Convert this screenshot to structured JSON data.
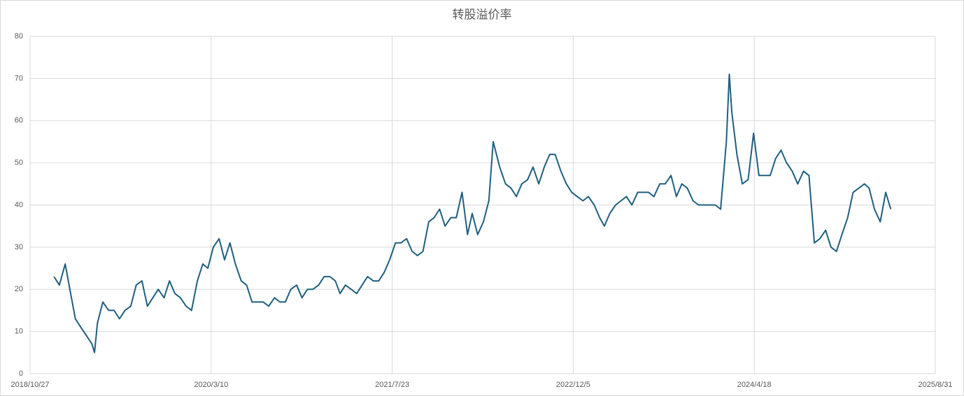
{
  "chart_data": {
    "type": "line",
    "title": "转股溢价率",
    "x": [
      "2019/1/1",
      "2019/1/16",
      "2019/2/1",
      "2019/2/16",
      "2019/3/1",
      "2019/3/16",
      "2019/4/1",
      "2019/4/16",
      "2019/4/23",
      "2019/5/1",
      "2019/5/16",
      "2019/6/1",
      "2019/6/16",
      "2019/7/1",
      "2019/7/16",
      "2019/8/1",
      "2019/8/16",
      "2019/9/1",
      "2019/9/16",
      "2019/10/1",
      "2019/10/16",
      "2019/11/1",
      "2019/11/16",
      "2019/12/1",
      "2019/12/16",
      "2020/1/1",
      "2020/1/16",
      "2020/2/1",
      "2020/2/16",
      "2020/3/1",
      "2020/3/16",
      "2020/4/1",
      "2020/4/16",
      "2020/5/1",
      "2020/5/16",
      "2020/6/1",
      "2020/6/16",
      "2020/7/1",
      "2020/7/16",
      "2020/8/1",
      "2020/8/16",
      "2020/9/1",
      "2020/9/16",
      "2020/10/1",
      "2020/10/16",
      "2020/11/1",
      "2020/11/16",
      "2020/12/1",
      "2020/12/16",
      "2021/1/1",
      "2021/1/16",
      "2021/2/1",
      "2021/2/16",
      "2021/3/1",
      "2021/3/16",
      "2021/4/1",
      "2021/4/16",
      "2021/5/1",
      "2021/5/16",
      "2021/6/1",
      "2021/6/16",
      "2021/7/1",
      "2021/7/16",
      "2021/8/1",
      "2021/8/16",
      "2021/9/1",
      "2021/9/16",
      "2021/10/1",
      "2021/10/16",
      "2021/11/1",
      "2021/11/16",
      "2021/12/1",
      "2021/12/16",
      "2022/1/1",
      "2022/1/16",
      "2022/2/1",
      "2022/2/16",
      "2022/3/1",
      "2022/3/16",
      "2022/4/1",
      "2022/4/16",
      "2022/4/28",
      "2022/5/16",
      "2022/6/1",
      "2022/6/16",
      "2022/7/1",
      "2022/7/16",
      "2022/8/1",
      "2022/8/16",
      "2022/9/1",
      "2022/9/16",
      "2022/10/1",
      "2022/10/16",
      "2022/11/1",
      "2022/11/16",
      "2022/12/1",
      "2022/12/16",
      "2023/1/1",
      "2023/1/16",
      "2023/2/1",
      "2023/2/16",
      "2023/3/1",
      "2023/3/16",
      "2023/4/1",
      "2023/4/16",
      "2023/5/1",
      "2023/5/16",
      "2023/6/1",
      "2023/6/16",
      "2023/7/1",
      "2023/7/16",
      "2023/8/1",
      "2023/8/16",
      "2023/9/1",
      "2023/9/16",
      "2023/10/1",
      "2023/10/16",
      "2023/11/1",
      "2023/11/16",
      "2023/12/1",
      "2023/12/16",
      "2024/1/1",
      "2024/1/16",
      "2024/2/1",
      "2024/2/9",
      "2024/2/16",
      "2024/3/1",
      "2024/3/16",
      "2024/4/1",
      "2024/4/16",
      "2024/5/1",
      "2024/5/16",
      "2024/6/1",
      "2024/6/16",
      "2024/7/1",
      "2024/7/16",
      "2024/8/1",
      "2024/8/16",
      "2024/9/1",
      "2024/9/16",
      "2024/10/1",
      "2024/10/16",
      "2024/11/1",
      "2024/11/16",
      "2024/12/1",
      "2024/12/16",
      "2025/1/1",
      "2025/1/16",
      "2025/2/1",
      "2025/2/16",
      "2025/3/1",
      "2025/3/16",
      "2025/4/1",
      "2025/4/16",
      "2025/4/30"
    ],
    "series": [
      {
        "name": "转股溢价率",
        "color": "#1f5f7f",
        "values": [
          23,
          21,
          26,
          19,
          13,
          11,
          9,
          7,
          5,
          12,
          17,
          15,
          15,
          13,
          15,
          16,
          21,
          22,
          16,
          18,
          20,
          18,
          22,
          19,
          18,
          16,
          15,
          22,
          26,
          25,
          30,
          32,
          27,
          31,
          26,
          22,
          21,
          17,
          17,
          17,
          16,
          18,
          17,
          17,
          20,
          21,
          18,
          20,
          20,
          21,
          23,
          23,
          22,
          19,
          21,
          20,
          19,
          21,
          23,
          22,
          22,
          24,
          27,
          31,
          31,
          32,
          29,
          28,
          29,
          36,
          37,
          39,
          35,
          37,
          37,
          43,
          33,
          38,
          33,
          36,
          41,
          55,
          49,
          45,
          44,
          42,
          45,
          46,
          49,
          45,
          49,
          52,
          52,
          48,
          45,
          43,
          42,
          41,
          42,
          40,
          37,
          35,
          38,
          40,
          41,
          42,
          40,
          43,
          43,
          43,
          42,
          45,
          45,
          47,
          42,
          45,
          44,
          41,
          40,
          40,
          40,
          40,
          39,
          55,
          71,
          62,
          52,
          45,
          46,
          57,
          47,
          47,
          47,
          51,
          53,
          50,
          48,
          45,
          48,
          47,
          31,
          32,
          34,
          30,
          29,
          33,
          37,
          43,
          44,
          45,
          44,
          39,
          36,
          43,
          39
        ]
      }
    ],
    "xlim": [
      "2018/10/27",
      "2025/8/31"
    ],
    "xticks": [
      "2018/10/27",
      "2020/3/10",
      "2021/7/23",
      "2022/12/5",
      "2024/4/18",
      "2025/8/31"
    ],
    "ylim": [
      0,
      80
    ],
    "yticks": [
      0,
      10,
      20,
      30,
      40,
      50,
      60,
      70,
      80
    ],
    "grid": true
  }
}
